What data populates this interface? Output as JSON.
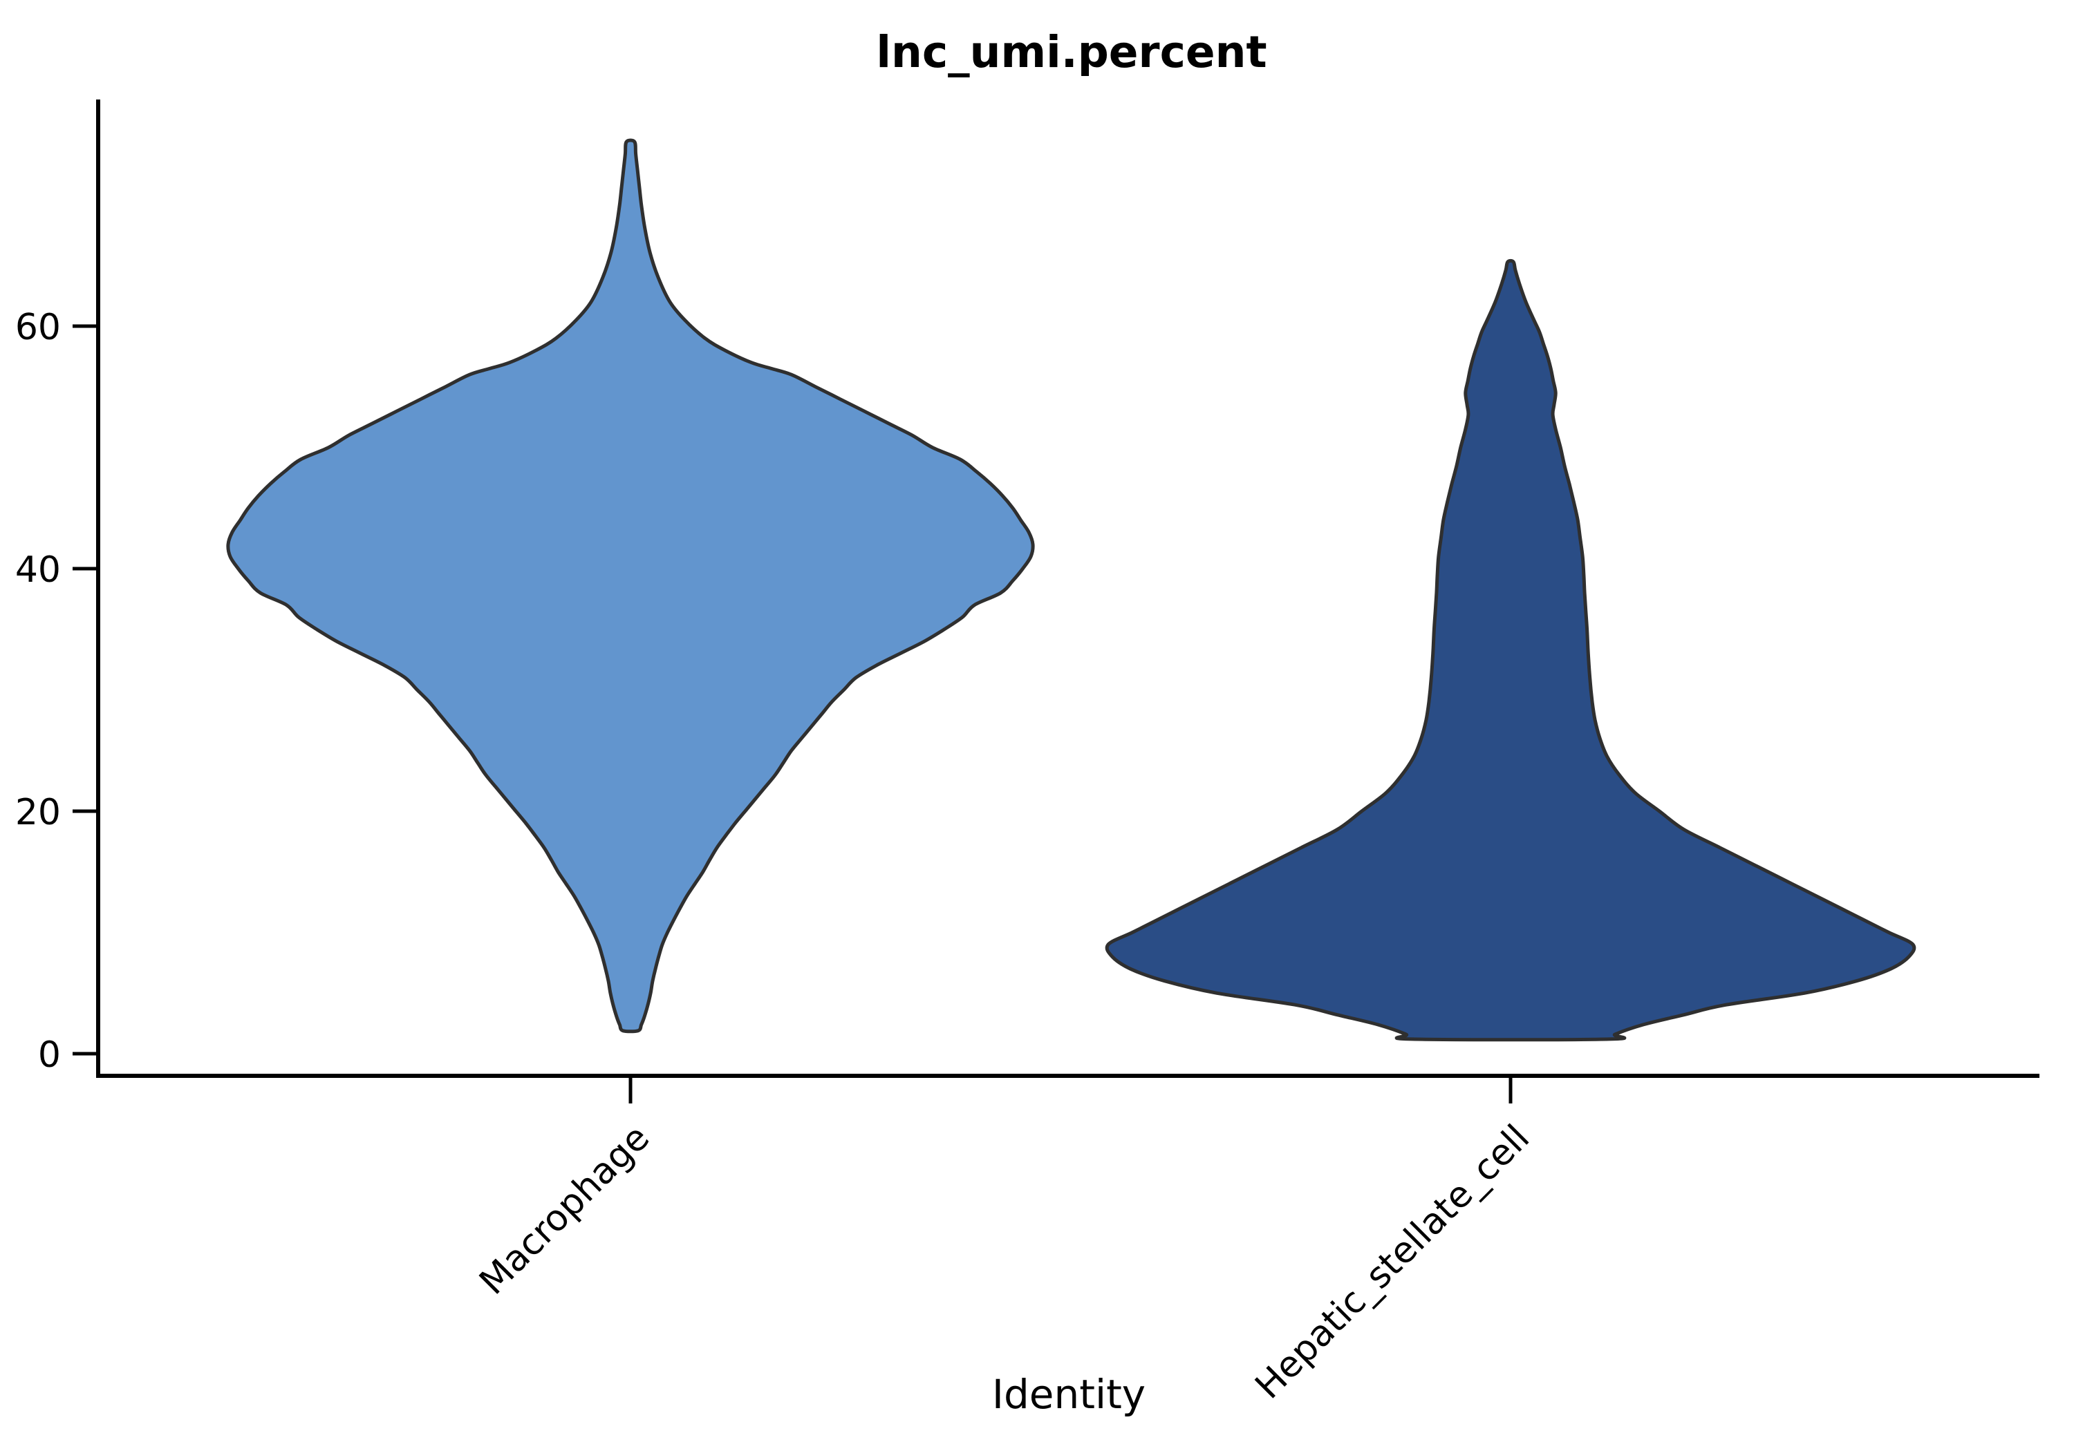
{
  "page": {
    "background": "#ffffff"
  },
  "chart_data": {
    "type": "violin",
    "title": "lnc_umi.percent",
    "xlabel": "Identity",
    "ylabel": "",
    "categories": [
      "Macrophage",
      "Hepatic_stellate_cell"
    ],
    "y_ticks": [
      0,
      20,
      40,
      60
    ],
    "y_tick_labels": [
      "0",
      "20",
      "40",
      "60"
    ],
    "ylim": [
      0,
      78.7
    ],
    "grid": false,
    "legend": "none",
    "axis_color": "#000000",
    "outline_color": "#2F2F2F",
    "series": [
      {
        "name": "Macrophage",
        "fill": "#6295CE",
        "summary": {
          "min": 1.9,
          "max": 75.2,
          "mode": 42,
          "shape": "diamond-like density widest near 42, thin spikes to 75 (top) and 2 (bottom)"
        },
        "profile": [
          [
            75.2,
            0.01
          ],
          [
            74.2,
            0.013
          ],
          [
            73,
            0.017
          ],
          [
            71.5,
            0.022
          ],
          [
            70,
            0.027
          ],
          [
            68,
            0.036
          ],
          [
            66,
            0.049
          ],
          [
            64,
            0.069
          ],
          [
            62,
            0.098
          ],
          [
            60.5,
            0.135
          ],
          [
            59,
            0.185
          ],
          [
            58,
            0.235
          ],
          [
            57,
            0.3
          ],
          [
            56.5,
            0.35
          ],
          [
            56,
            0.4
          ],
          [
            55,
            0.46
          ],
          [
            54,
            0.52
          ],
          [
            53,
            0.58
          ],
          [
            52,
            0.64
          ],
          [
            51,
            0.7
          ],
          [
            50,
            0.75
          ],
          [
            49,
            0.82
          ],
          [
            48,
            0.86
          ],
          [
            47,
            0.895
          ],
          [
            46,
            0.925
          ],
          [
            45,
            0.95
          ],
          [
            44,
            0.97
          ],
          [
            43,
            0.99
          ],
          [
            42,
            1.0
          ],
          [
            41,
            0.995
          ],
          [
            40,
            0.975
          ],
          [
            39,
            0.95
          ],
          [
            38,
            0.92
          ],
          [
            37,
            0.855
          ],
          [
            36,
            0.825
          ],
          [
            35,
            0.78
          ],
          [
            34,
            0.73
          ],
          [
            33,
            0.67
          ],
          [
            32,
            0.61
          ],
          [
            31,
            0.56
          ],
          [
            30,
            0.53
          ],
          [
            29,
            0.5
          ],
          [
            28,
            0.475
          ],
          [
            27,
            0.45
          ],
          [
            26,
            0.425
          ],
          [
            25,
            0.4
          ],
          [
            24,
            0.38
          ],
          [
            23,
            0.36
          ],
          [
            22,
            0.335
          ],
          [
            21,
            0.31
          ],
          [
            20,
            0.285
          ],
          [
            19,
            0.26
          ],
          [
            18,
            0.237
          ],
          [
            17,
            0.215
          ],
          [
            16,
            0.197
          ],
          [
            15,
            0.18
          ],
          [
            14,
            0.16
          ],
          [
            13,
            0.14
          ],
          [
            12,
            0.123
          ],
          [
            11,
            0.107
          ],
          [
            10,
            0.092
          ],
          [
            9,
            0.079
          ],
          [
            8,
            0.07
          ],
          [
            7,
            0.062
          ],
          [
            6,
            0.055
          ],
          [
            5,
            0.05
          ],
          [
            4,
            0.043
          ],
          [
            3,
            0.034
          ],
          [
            2.4,
            0.027
          ],
          [
            1.9,
            0.019
          ]
        ]
      },
      {
        "name": "Hepatic_stellate_cell",
        "fill": "#2A4D86",
        "summary": {
          "min": 1.2,
          "max": 65.3,
          "mode": 9,
          "shape": "narrow column from ~60 down to ~25 flaring into wide base widest near 9, flat trimmed bottom near 2"
        },
        "profile": [
          [
            65.3,
            0.007
          ],
          [
            64.6,
            0.012
          ],
          [
            63.5,
            0.022
          ],
          [
            62,
            0.038
          ],
          [
            60.5,
            0.058
          ],
          [
            59.5,
            0.072
          ],
          [
            58.5,
            0.082
          ],
          [
            57.5,
            0.092
          ],
          [
            56.5,
            0.1
          ],
          [
            55.5,
            0.106
          ],
          [
            54.5,
            0.112
          ],
          [
            53.5,
            0.108
          ],
          [
            52.7,
            0.105
          ],
          [
            51.5,
            0.112
          ],
          [
            50,
            0.124
          ],
          [
            48.5,
            0.134
          ],
          [
            47,
            0.146
          ],
          [
            45.5,
            0.157
          ],
          [
            44,
            0.167
          ],
          [
            42.5,
            0.173
          ],
          [
            41,
            0.179
          ],
          [
            39.5,
            0.182
          ],
          [
            38,
            0.184
          ],
          [
            36.5,
            0.187
          ],
          [
            35,
            0.19
          ],
          [
            33,
            0.193
          ],
          [
            31,
            0.197
          ],
          [
            29,
            0.203
          ],
          [
            27.5,
            0.21
          ],
          [
            26,
            0.222
          ],
          [
            24.5,
            0.24
          ],
          [
            23,
            0.27
          ],
          [
            21.5,
            0.31
          ],
          [
            20,
            0.37
          ],
          [
            18.5,
            0.43
          ],
          [
            17,
            0.52
          ],
          [
            15.5,
            0.61
          ],
          [
            14,
            0.7
          ],
          [
            12.5,
            0.79
          ],
          [
            11,
            0.88
          ],
          [
            10,
            0.94
          ],
          [
            9,
            1.0
          ],
          [
            8,
            0.99
          ],
          [
            7,
            0.945
          ],
          [
            6,
            0.86
          ],
          [
            5,
            0.73
          ],
          [
            4,
            0.53
          ],
          [
            3.2,
            0.43
          ],
          [
            2.4,
            0.33
          ],
          [
            1.6,
            0.26
          ],
          [
            1.2,
            0.245
          ]
        ]
      }
    ]
  }
}
